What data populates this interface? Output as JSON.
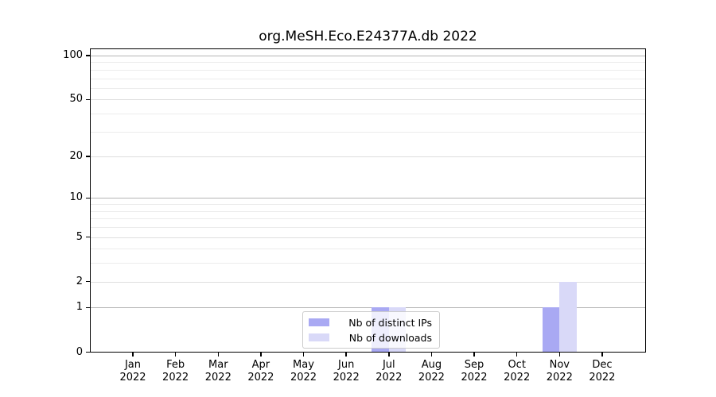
{
  "title": "org.MeSH.Eco.E24377A.db 2022",
  "chart_data": {
    "type": "bar",
    "title": "org.MeSH.Eco.E24377A.db 2022",
    "categories": [
      "Jan 2022",
      "Feb 2022",
      "Mar 2022",
      "Apr 2022",
      "May 2022",
      "Jun 2022",
      "Jul 2022",
      "Aug 2022",
      "Sep 2022",
      "Oct 2022",
      "Nov 2022",
      "Dec 2022"
    ],
    "x_tick_line1": [
      "Jan",
      "Feb",
      "Mar",
      "Apr",
      "May",
      "Jun",
      "Jul",
      "Aug",
      "Sep",
      "Oct",
      "Nov",
      "Dec"
    ],
    "x_tick_line2": [
      "2022",
      "2022",
      "2022",
      "2022",
      "2022",
      "2022",
      "2022",
      "2022",
      "2022",
      "2022",
      "2022",
      "2022"
    ],
    "series": [
      {
        "name": "Nb of distinct IPs",
        "color": "#a9a9f3",
        "values": [
          0,
          0,
          0,
          0,
          0,
          0,
          1,
          0,
          0,
          0,
          1,
          0
        ]
      },
      {
        "name": "Nb of downloads",
        "color": "#d9d9f8",
        "values": [
          0,
          0,
          0,
          0,
          0,
          0,
          1,
          0,
          0,
          0,
          2,
          0
        ]
      }
    ],
    "xlabel": "",
    "ylabel": "",
    "y_axis": {
      "scale": "log10(1+x)",
      "tick_values": [
        0,
        1,
        2,
        5,
        10,
        20,
        50,
        100
      ],
      "ylim": [
        0,
        112
      ],
      "major_grid_values": [
        1,
        10,
        100
      ],
      "mid_grid_values": [
        2,
        5,
        20,
        50
      ],
      "minor_grid_values": [
        3,
        4,
        6,
        7,
        8,
        9,
        30,
        40,
        60,
        70,
        80,
        90
      ]
    },
    "grid": true,
    "legend_position": "lower center",
    "legend_entries": [
      "Nb of distinct IPs",
      "Nb of downloads"
    ]
  },
  "colors": {
    "background": "#ffffff",
    "bar_distinct_ips": "#a9a9f3",
    "bar_downloads": "#d9d9f8",
    "grid_major": "#b5b5b5",
    "grid_mid": "#dedede",
    "grid_minor": "#ececec",
    "spine": "#000000",
    "legend_border": "#cccccc"
  }
}
